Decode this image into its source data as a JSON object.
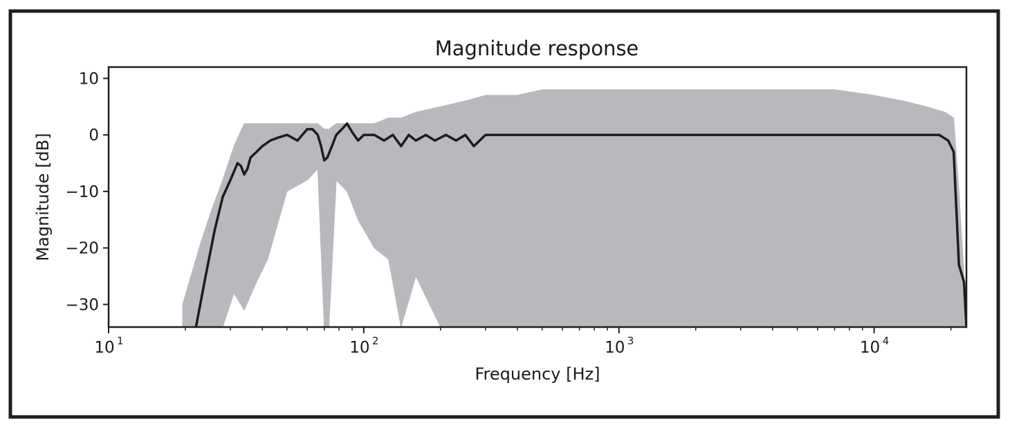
{
  "chart_data": {
    "type": "line",
    "title": "Magnitude response",
    "xlabel": "Frequency [Hz]",
    "ylabel": "Magnitude [dB]",
    "xscale": "log",
    "xlim": [
      10,
      23000
    ],
    "ylim": [
      -34,
      12
    ],
    "grid": false,
    "x_ticks": [
      {
        "value": 10,
        "base": "10",
        "exp": "1"
      },
      {
        "value": 100,
        "base": "10",
        "exp": "2"
      },
      {
        "value": 1000,
        "base": "10",
        "exp": "3"
      },
      {
        "value": 10000,
        "base": "10",
        "exp": "4"
      }
    ],
    "y_ticks": [
      {
        "value": 10,
        "label": "10"
      },
      {
        "value": 0,
        "label": "0"
      },
      {
        "value": -10,
        "label": "−10"
      },
      {
        "value": -20,
        "label": "−20"
      },
      {
        "value": -30,
        "label": "−30"
      }
    ],
    "colors": {
      "mean": "#1c1c1c",
      "individual": "#b7b9bc",
      "frame": "#1f1f1f"
    },
    "series": [
      {
        "role": "individual responses (envelope)",
        "color": "#b7b9bc",
        "x": [
          19.5,
          21,
          23,
          25,
          28,
          31,
          34,
          38,
          42,
          50,
          60,
          66,
          70,
          73,
          78,
          86,
          95,
          110,
          125,
          140,
          160,
          200,
          250,
          300,
          400,
          500,
          700,
          1000,
          1500,
          2000,
          3000,
          5000,
          7000,
          10000,
          13000,
          16000,
          19000,
          20500,
          21500,
          22500,
          23000
        ],
        "upper": [
          -30,
          -25,
          -19,
          -14,
          -8,
          -2,
          2,
          2,
          2,
          2,
          2,
          2,
          1,
          1,
          2,
          2,
          2,
          2,
          3,
          3,
          4,
          5,
          6,
          7,
          7,
          8,
          8,
          8,
          8,
          8,
          8,
          8,
          8,
          7,
          6,
          5,
          4,
          3,
          -10,
          -25,
          -34
        ],
        "lower": [
          -34,
          -34,
          -34,
          -34,
          -34,
          -28,
          -31,
          -26,
          -22,
          -10,
          -8,
          -6,
          -34,
          -34,
          -8,
          -10,
          -15,
          -20,
          -22,
          -34,
          -25,
          -34,
          -34,
          -34,
          -34,
          -34,
          -34,
          -34,
          -34,
          -34,
          -34,
          -34,
          -34,
          -34,
          -34,
          -34,
          -34,
          -34,
          -34,
          -34,
          -34
        ]
      },
      {
        "role": "mean response",
        "color": "#1c1c1c",
        "x": [
          22,
          24,
          26,
          28,
          30,
          32,
          33,
          34,
          35,
          36,
          38,
          40,
          43,
          46,
          50,
          55,
          60,
          63,
          66,
          68,
          70,
          72,
          75,
          78,
          82,
          86,
          90,
          95,
          100,
          110,
          120,
          130,
          140,
          150,
          160,
          175,
          190,
          210,
          230,
          250,
          270,
          300,
          330,
          370,
          400,
          450,
          500,
          600,
          700,
          800,
          1000,
          1200,
          1500,
          2000,
          3000,
          4000,
          5000,
          7000,
          10000,
          14000,
          18000,
          19500,
          20500,
          21500,
          22500,
          23000
        ],
        "y": [
          -34,
          -25,
          -17,
          -11,
          -8,
          -5,
          -5.5,
          -7,
          -6,
          -4,
          -3,
          -2,
          -1,
          -0.5,
          0,
          -1,
          1,
          1,
          0,
          -2,
          -4.5,
          -4,
          -2,
          0,
          1,
          2,
          0.5,
          -1,
          0,
          0,
          -1,
          0,
          -2,
          0,
          -1,
          0,
          -1,
          0,
          -1,
          0,
          -2,
          0,
          0,
          0,
          0,
          0,
          0,
          0,
          0,
          0,
          0,
          0,
          0,
          0,
          0,
          0,
          0,
          0,
          0,
          0,
          0,
          -1,
          -3,
          -23,
          -26,
          -34
        ]
      }
    ]
  }
}
